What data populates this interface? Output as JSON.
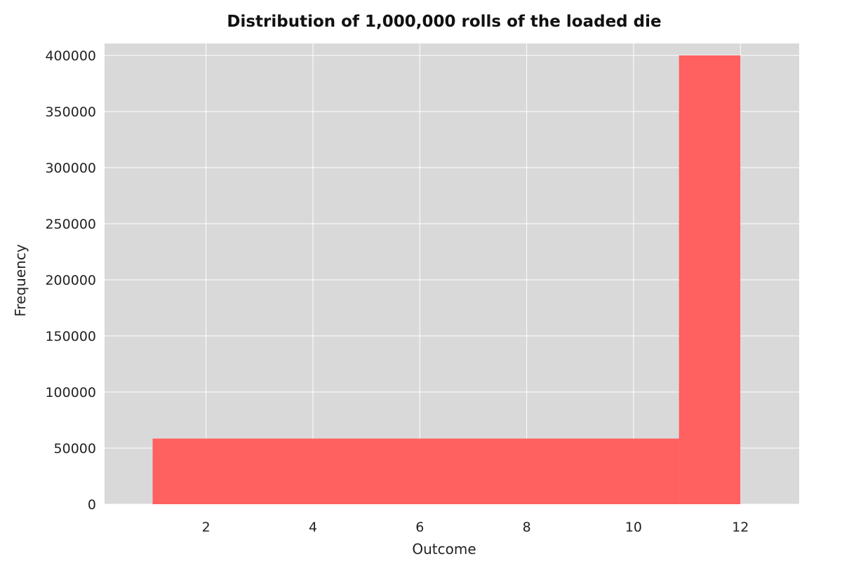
{
  "chart_data": {
    "type": "bar",
    "title": "Distribution of 1,000,000 rolls of the loaded die",
    "xlabel": "Outcome",
    "ylabel": "Frequency",
    "xlim": [
      0.1,
      13.1
    ],
    "ylim": [
      0,
      400000
    ],
    "x_ticks": [
      2,
      4,
      6,
      8,
      10,
      12
    ],
    "y_ticks": [
      0,
      50000,
      100000,
      150000,
      200000,
      250000,
      300000,
      350000,
      400000
    ],
    "grid": true,
    "legend": "none",
    "bins": [
      {
        "x0": 1,
        "x1": 10.85,
        "value": 58500
      },
      {
        "x0": 10.85,
        "x1": 12,
        "value": 400000
      }
    ],
    "colors": {
      "bar": "#ff6060",
      "plot_background": "#d9d9d9",
      "grid": "#ffffff"
    }
  }
}
